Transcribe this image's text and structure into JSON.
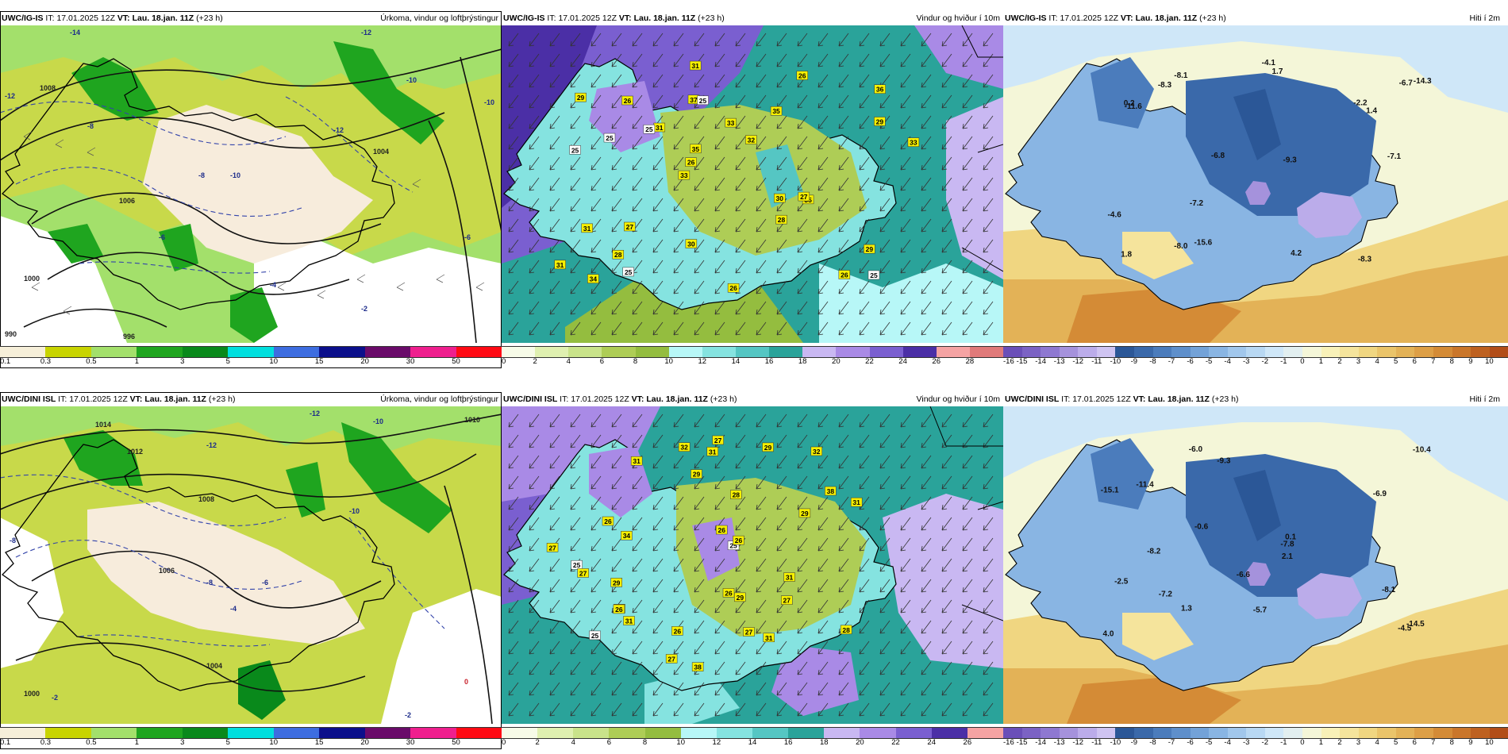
{
  "rows": [
    {
      "panels": [
        {
          "model": "UWC/IG-IS",
          "it_label": "IT:",
          "it_value": "17.01.2025 12Z",
          "vt_label": "VT:",
          "vt_value": "Lau. 18.jan. 11Z",
          "lead": "(+23 h)",
          "title": "Úrkoma, vindur og loftþrýstingur",
          "legend": [
            "0.1",
            "0.3",
            "0.5",
            "1",
            "3",
            "5",
            "10",
            "15",
            "20",
            "30",
            "50"
          ],
          "legend_colors": [
            "#f6efd9",
            "#c8d400",
            "#a3e06b",
            "#1fa51f",
            "#09891b",
            "#00df de",
            "#3d6de0",
            "#0b0f8b",
            "#6a0b6a",
            "#ef1f8e",
            "#ff0a14"
          ],
          "labels": [
            "-14",
            "-12",
            "-12",
            "-10",
            "-10",
            "-8",
            "-8",
            "-12",
            "-10",
            "1008",
            "1006",
            "1004",
            "1000",
            "996",
            "990",
            "-6",
            "-4",
            "-2",
            "-6"
          ]
        },
        {
          "model": "UWC/IG-IS",
          "it_label": "IT:",
          "it_value": "17.01.2025 12Z",
          "vt_label": "VT:",
          "vt_value": "Lau. 18.jan. 11Z",
          "lead": "(+23 h)",
          "title": "Vindur og hviður í 10m",
          "legend": [
            "0",
            "2",
            "4",
            "6",
            "8",
            "10",
            "12",
            "14",
            "16",
            "18",
            "20",
            "22",
            "24",
            "26",
            "28"
          ],
          "legend_colors": [
            "#f7fbe8",
            "#dff0b0",
            "#c9e38a",
            "#aecd56",
            "#94bd3f",
            "#b7f7f7",
            "#85e3e0",
            "#55c6c3",
            "#2aa39a",
            "#c9b8f2",
            "#a98ae6",
            "#7a5fd0",
            "#4b2fa6",
            "#f5a3a3",
            "#e07a7a"
          ],
          "gusts": [
            "25",
            "25",
            "36",
            "33",
            "35",
            "34",
            "37",
            "33",
            "31",
            "31",
            "31",
            "28",
            "25",
            "32",
            "35",
            "29",
            "31",
            "33",
            "30",
            "29",
            "26",
            "30",
            "35",
            "26",
            "26",
            "27",
            "26",
            "29",
            "27",
            "26",
            "25",
            "25",
            "28",
            "25"
          ]
        },
        {
          "model": "UWC/IG-IS",
          "it_label": "IT:",
          "it_value": "17.01.2025 12Z",
          "vt_label": "VT:",
          "vt_value": "Lau. 18.jan. 11Z",
          "lead": "(+23 h)",
          "title": "Hiti í 2m",
          "legend": [
            "-16",
            "-15",
            "-14",
            "-13",
            "-12",
            "-11",
            "-10",
            "-9",
            "-8",
            "-7",
            "-6",
            "-5",
            "-4",
            "-3",
            "-2",
            "-1",
            "0",
            "1",
            "2",
            "3",
            "4",
            "5",
            "6",
            "7",
            "8",
            "9",
            "10"
          ],
          "legend_colors": [
            "#6a4fb8",
            "#7b62c4",
            "#8e78d1",
            "#a592dc",
            "#bbacea",
            "#cfc4f2",
            "#2b5797",
            "#3a69aa",
            "#4b7cbc",
            "#5e8fcb",
            "#73a2d8",
            "#89b5e3",
            "#a1c7ec",
            "#b8d8f3",
            "#cfe7f8",
            "#e2eff0",
            "#f4f6d8",
            "#f8f1b8",
            "#f5e49c",
            "#f0d681",
            "#eac46a",
            "#e3b257",
            "#dd9f46",
            "#d48b36",
            "#ca762a",
            "#be6120",
            "#b24d18"
          ],
          "temps": [
            "-8.3",
            "-7.1",
            "-6.8",
            "-8.3",
            "-4.6",
            "-11.6",
            "-9.3",
            "-8.0",
            "-7.2",
            "-6.7",
            "-2.2",
            "-8.1",
            "0.2",
            "-14.3",
            "-15.6",
            "1.7",
            "1.8",
            "1.4",
            "-4.1",
            "4.2"
          ]
        }
      ]
    },
    {
      "panels": [
        {
          "model": "UWC/DINI ISL",
          "it_label": "IT:",
          "it_value": "17.01.2025 12Z",
          "vt_label": "VT:",
          "vt_value": "Lau. 18.jan. 11Z",
          "lead": "(+23 h)",
          "title": "Úrkoma, vindur og loftþrýstingur",
          "legend": [
            "0.1",
            "0.3",
            "0.5",
            "1",
            "3",
            "5",
            "10",
            "15",
            "20",
            "30",
            "50"
          ],
          "legend_colors": [
            "#f6efd9",
            "#c8d400",
            "#a3e06b",
            "#1fa51f",
            "#09891b",
            "#00dfde",
            "#3d6de0",
            "#0b0f8b",
            "#6a0b6a",
            "#ef1f8e",
            "#ff0a14"
          ],
          "labels": [
            "1014",
            "1012",
            "-12",
            "-12",
            "1010",
            "-10",
            "-8",
            "-8",
            "1008",
            "1006",
            "1004",
            "1000",
            "-4",
            "-2",
            "-2",
            "0",
            "-6",
            "-10"
          ]
        },
        {
          "model": "UWC/DINI ISL",
          "it_label": "IT:",
          "it_value": "17.01.2025 12Z",
          "vt_label": "VT:",
          "vt_value": "Lau. 18.jan. 11Z",
          "lead": "(+23 h)",
          "title": "Vindur og hviður í 10m",
          "legend": [
            "0",
            "2",
            "4",
            "6",
            "8",
            "10",
            "12",
            "14",
            "16",
            "18",
            "20",
            "22",
            "24",
            "26"
          ],
          "legend_colors": [
            "#f7fbe8",
            "#dff0b0",
            "#c9e38a",
            "#aecd56",
            "#94bd3f",
            "#b7f7f7",
            "#85e3e0",
            "#55c6c3",
            "#2aa39a",
            "#c9b8f2",
            "#a98ae6",
            "#7a5fd0",
            "#4b2fa6",
            "#f5a3a3"
          ],
          "gusts": [
            "25",
            "32",
            "31",
            "38",
            "29",
            "34",
            "29",
            "34",
            "31",
            "29",
            "25",
            "27",
            "27",
            "25",
            "38",
            "32",
            "28",
            "27",
            "26",
            "27",
            "31",
            "31",
            "29",
            "26",
            "26",
            "26",
            "27",
            "29",
            "28",
            "31",
            "26",
            "31",
            "27",
            "26"
          ]
        },
        {
          "model": "UWC/DINI ISL",
          "it_label": "IT:",
          "it_value": "17.01.2025 12Z",
          "vt_label": "VT:",
          "vt_value": "Lau. 18.jan. 11Z",
          "lead": "(+23 h)",
          "title": "Hiti í 2m",
          "legend": [
            "-16",
            "-15",
            "-14",
            "-13",
            "-12",
            "-11",
            "-10",
            "-9",
            "-8",
            "-7",
            "-6",
            "-5",
            "-4",
            "-3",
            "-2",
            "-1",
            "0",
            "1",
            "2",
            "3",
            "4",
            "5",
            "6",
            "7",
            "8",
            "9",
            "10"
          ],
          "legend_colors": [
            "#6a4fb8",
            "#7b62c4",
            "#8e78d1",
            "#a592dc",
            "#bbacea",
            "#cfc4f2",
            "#2b5797",
            "#3a69aa",
            "#4b7cbc",
            "#5e8fcb",
            "#73a2d8",
            "#89b5e3",
            "#a1c7ec",
            "#b8d8f3",
            "#cfe7f8",
            "#e2eff0",
            "#f4f6d8",
            "#f8f1b8",
            "#f5e49c",
            "#f0d681",
            "#eac46a",
            "#e3b257",
            "#dd9f46",
            "#d48b36",
            "#ca762a",
            "#be6120",
            "#b24d18"
          ],
          "temps": [
            "-5.7",
            "-7.2",
            "-6.0",
            "-10.4",
            "-8.1",
            "-9.3",
            "1.3",
            "-11.4",
            "-7.8",
            "-6.9",
            "-6.6",
            "-8.2",
            "-14.5",
            "-15.1",
            "2.1",
            "-4.5",
            "-0.6",
            "4.0",
            "-2.5",
            "0.1"
          ]
        }
      ]
    }
  ]
}
